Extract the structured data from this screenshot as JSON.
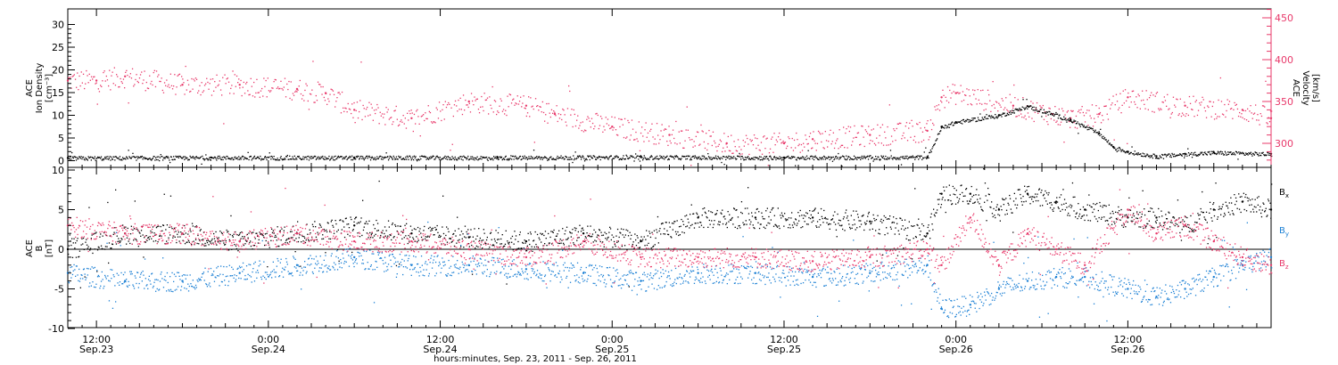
{
  "colors": {
    "black": "#000000",
    "pink": "#e8386a",
    "blue": "#1a7fd4"
  },
  "top_panel": {
    "ylabel_lines": [
      "ACE",
      "Ion Density",
      "[cm⁻³]"
    ],
    "yticks": [
      "0",
      "5",
      "10",
      "15",
      "20",
      "25",
      "30"
    ],
    "ylabel_right_lines": [
      "ACE",
      "Velocity",
      "[km/s]"
    ],
    "yticks_right": [
      "300",
      "350",
      "400",
      "450"
    ]
  },
  "bottom_panel": {
    "ylabel_lines": [
      "ACE",
      "B",
      "[nT]"
    ],
    "yticks": [
      "-10",
      "-5",
      "0",
      "5",
      "10"
    ],
    "legend": [
      {
        "base": "B",
        "sub": "x",
        "color": "#000000"
      },
      {
        "base": "B",
        "sub": "y",
        "color": "#1a7fd4"
      },
      {
        "base": "B",
        "sub": "z",
        "color": "#e8386a"
      }
    ]
  },
  "xaxis": {
    "ticks": [
      {
        "time": "12:00",
        "date": "Sep.23"
      },
      {
        "time": "0:00",
        "date": "Sep.24"
      },
      {
        "time": "12:00",
        "date": "Sep.24"
      },
      {
        "time": "0:00",
        "date": "Sep.25"
      },
      {
        "time": "12:00",
        "date": "Sep.25"
      },
      {
        "time": "0:00",
        "date": "Sep.26"
      },
      {
        "time": "12:00",
        "date": "Sep.26"
      }
    ],
    "label": "hours:minutes, Sep. 23, 2011 - Sep. 26, 2011"
  },
  "chart_data": [
    {
      "type": "scatter",
      "panel": "top",
      "x_unit": "hours since 2011-09-23 00:00 UT",
      "xlim": [
        10,
        94
      ],
      "ylim_left": [
        0,
        33
      ],
      "ylim_right": [
        270,
        465
      ],
      "series": [
        {
          "name": "Ion Density",
          "axis": "left",
          "color": "#000000",
          "x": [
            10,
            20,
            30,
            40,
            50,
            60,
            70,
            71,
            72,
            75,
            77,
            80,
            82,
            83,
            84,
            86,
            88,
            90,
            94
          ],
          "y": [
            0.6,
            0.7,
            0.7,
            0.7,
            0.8,
            0.7,
            0.8,
            7.5,
            8.5,
            10,
            12,
            9,
            6,
            3,
            2,
            1,
            1.5,
            1.8,
            1.5
          ]
        },
        {
          "name": "Velocity",
          "axis": "right",
          "color": "#e8386a",
          "x": [
            10,
            12,
            14,
            18,
            22,
            26,
            28,
            30,
            34,
            38,
            42,
            44,
            48,
            52,
            56,
            60,
            62,
            66,
            70,
            71,
            72,
            76,
            80,
            82,
            84,
            88,
            92,
            94
          ],
          "y": [
            375,
            375,
            380,
            370,
            370,
            365,
            360,
            340,
            330,
            350,
            345,
            335,
            320,
            310,
            300,
            300,
            305,
            310,
            315,
            355,
            360,
            345,
            330,
            335,
            355,
            345,
            340,
            330
          ]
        }
      ]
    },
    {
      "type": "scatter",
      "panel": "bottom",
      "x_unit": "hours since 2011-09-23 00:00 UT",
      "xlim": [
        10,
        94
      ],
      "ylim": [
        -10,
        10
      ],
      "series": [
        {
          "name": "Bx",
          "color": "#000000",
          "x": [
            10,
            14,
            18,
            22,
            26,
            30,
            34,
            38,
            42,
            46,
            50,
            54,
            58,
            62,
            66,
            70,
            71,
            73,
            75,
            77,
            79,
            81,
            84,
            86,
            88,
            90,
            92,
            94
          ],
          "y": [
            0,
            2,
            2,
            1,
            2,
            3,
            2,
            1.5,
            1,
            2,
            1,
            4,
            4,
            4,
            3.5,
            2,
            7,
            7,
            5,
            7,
            6,
            5,
            4,
            4,
            3,
            5,
            6,
            5
          ]
        },
        {
          "name": "By",
          "color": "#1a7fd4",
          "x": [
            10,
            14,
            18,
            22,
            26,
            30,
            34,
            38,
            42,
            46,
            50,
            54,
            58,
            62,
            66,
            70,
            71,
            73,
            75,
            77,
            79,
            81,
            84,
            86,
            88,
            90,
            92,
            94
          ],
          "y": [
            -3,
            -4,
            -4,
            -3,
            -2,
            -1,
            -2,
            -2,
            -2.5,
            -3,
            -4,
            -3,
            -3,
            -3.5,
            -3,
            -2,
            -7.5,
            -7,
            -5,
            -4,
            -3.5,
            -3.5,
            -5,
            -6,
            -5,
            -3.5,
            -2,
            -1
          ]
        },
        {
          "name": "Bz",
          "color": "#e8386a",
          "x": [
            10,
            14,
            18,
            22,
            26,
            30,
            34,
            38,
            42,
            46,
            50,
            54,
            58,
            62,
            66,
            70,
            71,
            73,
            75,
            77,
            79,
            81,
            84,
            86,
            88,
            90,
            92,
            94
          ],
          "y": [
            3,
            2,
            2,
            1,
            2,
            1,
            1,
            0,
            -1,
            1,
            -1,
            -1,
            -1,
            -1.5,
            -1,
            0,
            -2,
            4,
            -2,
            2,
            0,
            -2,
            5,
            2,
            3,
            1,
            -1,
            -2
          ]
        }
      ]
    }
  ]
}
